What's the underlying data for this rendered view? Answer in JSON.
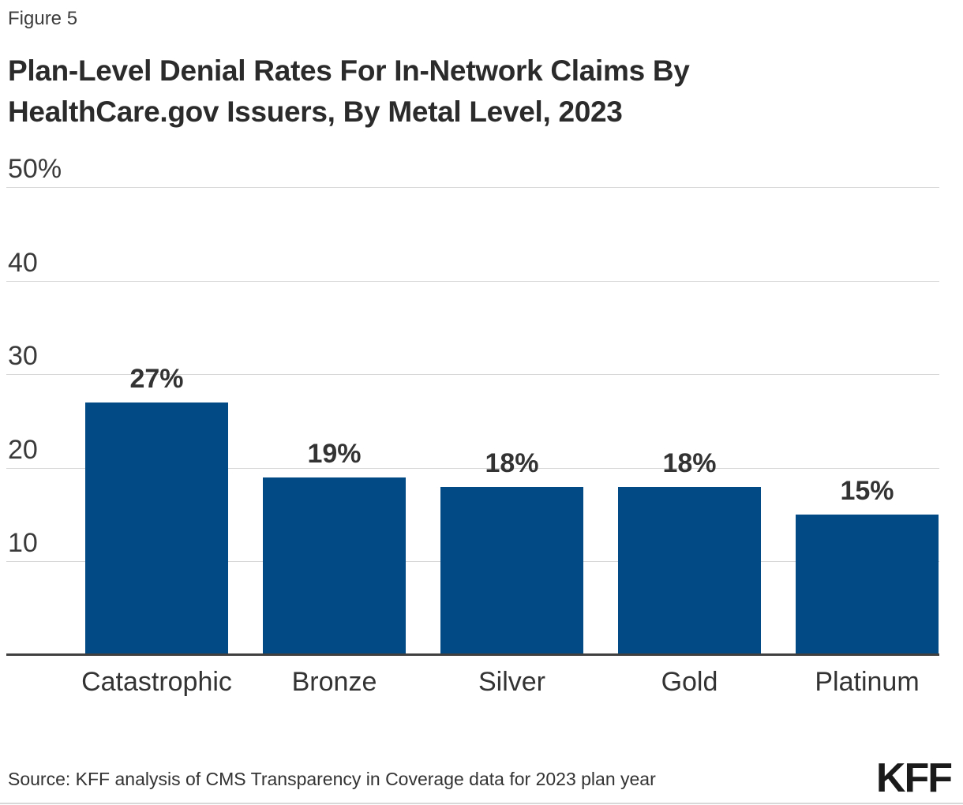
{
  "figure_label": "Figure 5",
  "title_line1": "Plan-Level Denial Rates For In-Network Claims By",
  "title_line2": "HealthCare.gov Issuers, By Metal Level, 2023",
  "source": "Source: KFF analysis of CMS Transparency in Coverage data for 2023 plan year",
  "logo": "KFF",
  "colors": {
    "bar": "#024a85",
    "gridline": "#d7d7d7",
    "axis": "#404040",
    "title_text": "#2b2b2b",
    "label_text": "#333333"
  },
  "chart_data": {
    "type": "bar",
    "title": "Plan-Level Denial Rates For In-Network Claims By HealthCare.gov Issuers, By Metal Level, 2023",
    "categories": [
      "Catastrophic",
      "Bronze",
      "Silver",
      "Gold",
      "Platinum"
    ],
    "values": [
      27,
      19,
      18,
      18,
      15
    ],
    "value_labels": [
      "27%",
      "19%",
      "18%",
      "18%",
      "15%"
    ],
    "xlabel": "",
    "ylabel": "",
    "y_ticks": [
      "50%",
      "40",
      "30",
      "20",
      "10"
    ],
    "y_tick_values": [
      50,
      40,
      30,
      20,
      10
    ],
    "ylim": [
      0,
      50
    ],
    "grid": true,
    "legend": false,
    "bar_color": "#024a85"
  }
}
